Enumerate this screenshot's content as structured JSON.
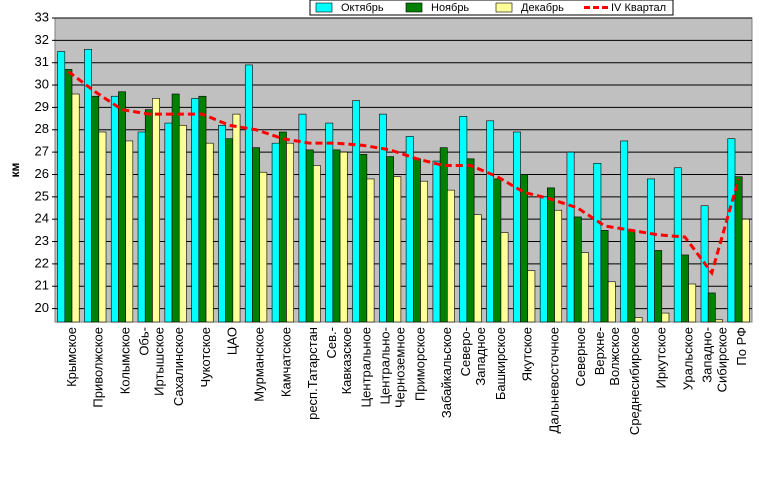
{
  "chart_data": {
    "type": "bar",
    "y_label": "км",
    "categories": [
      "Крымское",
      "Приволжское",
      "Колымское",
      "Обь-Иртышское",
      "Сахалинское",
      "Чукотское",
      "ЦАО",
      "Мурманское",
      "Камчатское",
      "респ.Татарстан",
      "Сев.-Кавказское",
      "Центральное",
      "Центрально-Черноземное",
      "Приморское",
      "Забайкальское",
      "Северо-Западное",
      "Башкирское",
      "Якутское",
      "Дальневосточное",
      "Северное",
      "Верхне-Волжское",
      "Среднесибирское",
      "Иркутское",
      "Уральское",
      "Западно-Сибирское",
      "По РФ"
    ],
    "series": [
      {
        "name": "Октябрь",
        "color": "#00ffff",
        "type": "bar",
        "values": [
          31.5,
          31.6,
          29.5,
          27.9,
          28.3,
          29.4,
          28.2,
          30.9,
          27.4,
          28.7,
          28.3,
          29.3,
          28.7,
          27.7,
          26.6,
          28.6,
          28.4,
          27.9,
          25.0,
          27.0,
          26.5,
          27.5,
          25.8,
          26.3,
          24.6,
          27.6
        ]
      },
      {
        "name": "Ноябрь",
        "color": "#008000",
        "type": "bar",
        "values": [
          30.7,
          29.5,
          29.7,
          28.9,
          29.6,
          29.5,
          27.6,
          27.2,
          27.9,
          27.1,
          27.1,
          26.9,
          26.8,
          26.7,
          27.2,
          26.7,
          25.8,
          26.0,
          25.4,
          24.1,
          23.5,
          23.5,
          22.6,
          22.4,
          20.7,
          25.9
        ]
      },
      {
        "name": "Декабрь",
        "color": "#ffff99",
        "type": "bar",
        "values": [
          29.6,
          27.9,
          27.5,
          29.4,
          28.2,
          27.4,
          28.7,
          26.1,
          27.4,
          26.4,
          27.0,
          25.8,
          25.9,
          25.7,
          25.3,
          24.2,
          23.4,
          21.7,
          24.4,
          22.5,
          21.2,
          19.6,
          19.8,
          21.1,
          19.5,
          24.0
        ]
      },
      {
        "name": "IV Квартал",
        "color": "#ff0000",
        "type": "line",
        "values": [
          30.6,
          29.7,
          28.9,
          28.7,
          28.7,
          28.7,
          28.2,
          28.0,
          27.6,
          27.4,
          27.4,
          27.3,
          27.1,
          26.7,
          26.4,
          26.4,
          25.9,
          25.2,
          24.9,
          24.5,
          23.7,
          23.5,
          23.3,
          23.2,
          21.6,
          25.8
        ]
      }
    ],
    "ylim": [
      19.4,
      33
    ],
    "yticks": [
      20,
      21,
      22,
      23,
      24,
      25,
      26,
      27,
      28,
      29,
      30,
      31,
      32,
      33
    ],
    "grid": true,
    "legend": "top"
  }
}
